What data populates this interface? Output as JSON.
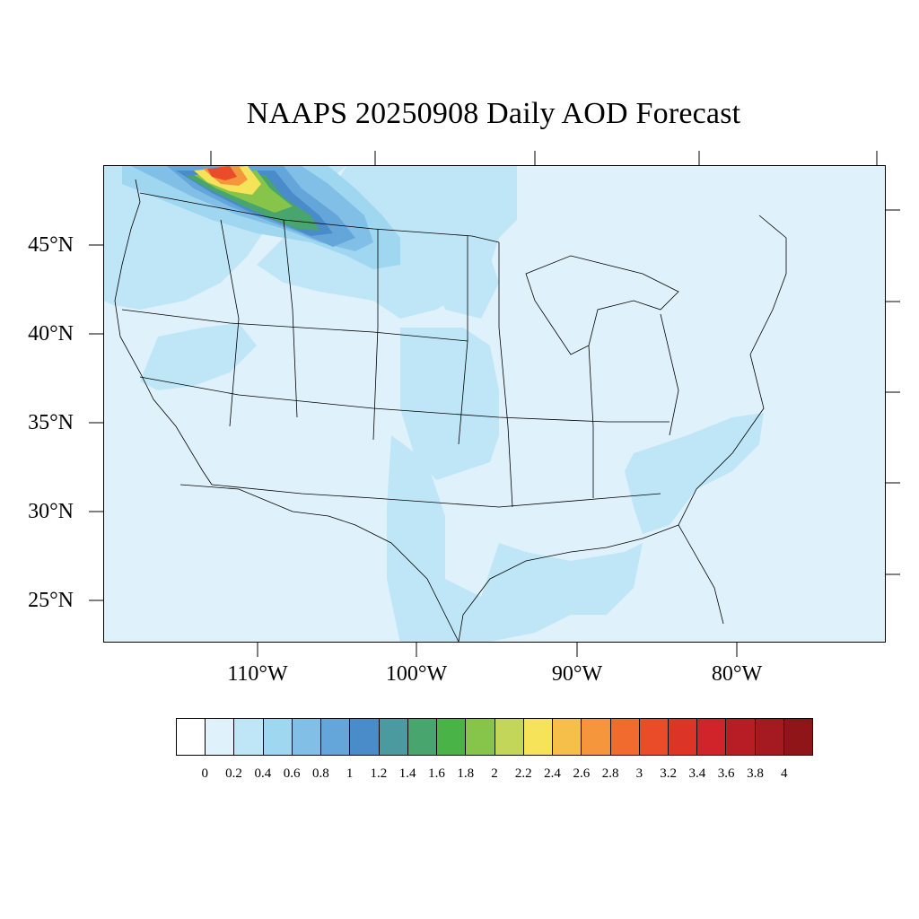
{
  "title": "NAAPS 20250908 Daily AOD Forecast",
  "map": {
    "projection": "Lambert conic (CONUS)",
    "variable": "Aerosol Optical Depth (daily)",
    "background_class": "0.0-0.2",
    "extent": {
      "lon_min": -125,
      "lon_max": -65,
      "lat_min": 22.5,
      "lat_max": 50
    },
    "lat_labels": [
      "45°N",
      "40°N",
      "35°N",
      "30°N",
      "25°N"
    ],
    "lon_labels": [
      "110°W",
      "100°W",
      "90°W",
      "80°W"
    ],
    "features": [
      {
        "name": "smoke plume (max)",
        "region": "southern British Columbia / northern Washington",
        "aod_class": "2.8-3.2"
      },
      {
        "name": "smoke plume",
        "region": "northern Idaho, Montana to northern Wyoming",
        "aod_class": "0.8-1.6"
      },
      {
        "name": "haze",
        "region": "Great Plains, Texas, Gulf of Mexico, Southeast",
        "aod_class": "0.2-0.4"
      }
    ]
  },
  "colorbar": {
    "labels": [
      "0",
      "0.2",
      "0.4",
      "0.6",
      "0.8",
      "1",
      "1.2",
      "1.4",
      "1.6",
      "1.8",
      "2",
      "2.2",
      "2.4",
      "2.6",
      "2.8",
      "3",
      "3.2",
      "3.4",
      "3.6",
      "3.8",
      "4"
    ],
    "colors": [
      "#ffffff",
      "#dff1fb",
      "#bfe6f7",
      "#9fd6f0",
      "#82bfe6",
      "#64a6da",
      "#4a8bc9",
      "#4a9aa0",
      "#48a56e",
      "#49b347",
      "#86c44a",
      "#c4d65a",
      "#f7e35a",
      "#f6bf4a",
      "#f5963c",
      "#f26b2e",
      "#ea4b29",
      "#dc3527",
      "#d1232a",
      "#b81c25",
      "#a41a20",
      "#8f1519"
    ]
  }
}
